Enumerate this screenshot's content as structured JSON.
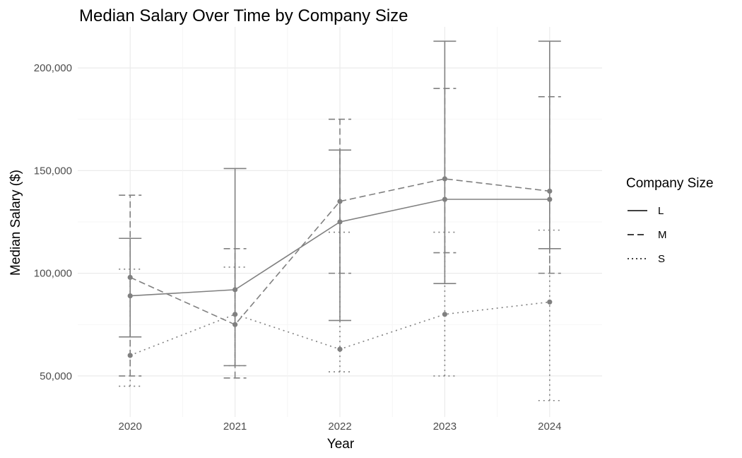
{
  "chart_data": {
    "type": "line",
    "title": "Median Salary Over Time by Company Size",
    "xlabel": "Year",
    "ylabel": "Median Salary ($)",
    "x": [
      "2020",
      "2021",
      "2022",
      "2023",
      "2024"
    ],
    "ylim": [
      30000,
      220000
    ],
    "y_ticks": [
      50000,
      100000,
      150000,
      200000
    ],
    "y_tick_labels": [
      "50,000",
      "100,000",
      "150,000",
      "200,000"
    ],
    "grid": true,
    "error_bars": true,
    "line_color": "#808080",
    "legend": {
      "title": "Company Size",
      "position": "right"
    },
    "series": [
      {
        "name": "L",
        "linetype": "solid",
        "values": [
          89000,
          92000,
          125000,
          136000,
          136000
        ],
        "lower": [
          69000,
          55000,
          77000,
          95000,
          112000
        ],
        "upper": [
          117000,
          151000,
          160000,
          213000,
          213000
        ]
      },
      {
        "name": "M",
        "linetype": "dashed",
        "values": [
          98000,
          75000,
          135000,
          146000,
          140000
        ],
        "lower": [
          50000,
          49000,
          100000,
          110000,
          100000
        ],
        "upper": [
          138000,
          112000,
          175000,
          190000,
          186000
        ]
      },
      {
        "name": "S",
        "linetype": "dotted",
        "values": [
          60000,
          80000,
          63000,
          80000,
          86000
        ],
        "lower": [
          45000,
          55000,
          52000,
          50000,
          38000
        ],
        "upper": [
          102000,
          103000,
          120000,
          120000,
          121000
        ]
      }
    ]
  }
}
